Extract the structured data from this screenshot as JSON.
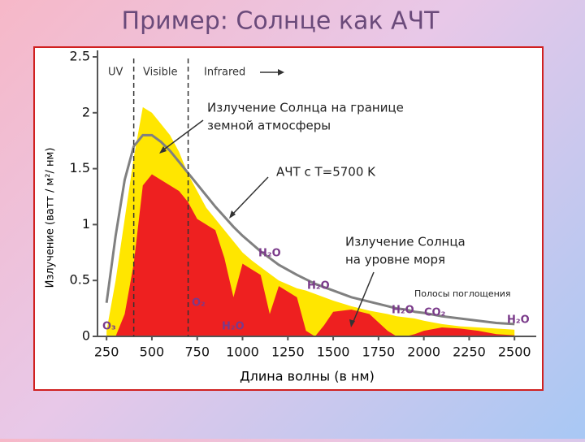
{
  "title": "Пример: Солнце как АЧТ",
  "chart_data": {
    "type": "area",
    "x_label": "Длина волны (в нм)",
    "y_label": "Излучение (ватт / м²/ нм)",
    "x": [
      250,
      300,
      350,
      400,
      450,
      500,
      550,
      600,
      650,
      700,
      750,
      800,
      850,
      900,
      950,
      1000,
      1050,
      1100,
      1150,
      1200,
      1300,
      1350,
      1400,
      1450,
      1500,
      1600,
      1700,
      1800,
      1850,
      1900,
      1950,
      2000,
      2100,
      2200,
      2300,
      2400,
      2500
    ],
    "series": [
      {
        "name": "Излучение Солнца на границе земной атмосферы",
        "type": "area",
        "color": "#ffe600",
        "values": [
          0.05,
          0.5,
          1.05,
          1.6,
          2.05,
          2.0,
          1.9,
          1.8,
          1.65,
          1.45,
          1.3,
          1.15,
          1.05,
          0.95,
          0.85,
          0.75,
          0.68,
          0.62,
          0.56,
          0.5,
          0.43,
          0.41,
          0.38,
          0.35,
          0.32,
          0.27,
          0.23,
          0.2,
          0.18,
          0.17,
          0.16,
          0.14,
          0.11,
          0.09,
          0.08,
          0.07,
          0.06
        ]
      },
      {
        "name": "Излучение Солнца на уровне моря",
        "type": "area",
        "color": "#ee2020",
        "values": [
          0,
          0,
          0.2,
          0.65,
          1.35,
          1.45,
          1.4,
          1.35,
          1.3,
          1.2,
          1.05,
          1.0,
          0.95,
          0.7,
          0.35,
          0.65,
          0.6,
          0.55,
          0.2,
          0.45,
          0.35,
          0.05,
          0,
          0.1,
          0.22,
          0.24,
          0.2,
          0.05,
          0,
          0,
          0.02,
          0.05,
          0.08,
          0.07,
          0.05,
          0.02,
          0.01
        ]
      },
      {
        "name": "АЧТ с T=5700 K",
        "type": "line",
        "color": "#808080",
        "values": [
          0.3,
          0.9,
          1.4,
          1.7,
          1.8,
          1.8,
          1.74,
          1.66,
          1.56,
          1.46,
          1.36,
          1.26,
          1.16,
          1.07,
          0.98,
          0.9,
          0.83,
          0.76,
          0.7,
          0.64,
          0.55,
          0.51,
          0.47,
          0.44,
          0.41,
          0.35,
          0.31,
          0.27,
          0.25,
          0.24,
          0.22,
          0.21,
          0.18,
          0.16,
          0.14,
          0.12,
          0.11
        ]
      }
    ],
    "xlim": [
      200,
      2620
    ],
    "ylim": [
      0,
      2.5
    ],
    "xticks": [
      250,
      500,
      750,
      1000,
      1250,
      1500,
      1750,
      2000,
      2250,
      2500
    ],
    "yticks": [
      0,
      0.5,
      1,
      1.5,
      2,
      2.5
    ],
    "dividers": [
      400,
      700
    ],
    "regions": [
      "UV",
      "Visible",
      "Infrared"
    ],
    "annotations": [
      "Излучение Солнца на границе",
      "земной атмосферы",
      "АЧТ с T=5700 K",
      "Излучение Солнца",
      "на уровне моря",
      "Полосы поглощения"
    ],
    "band_labels": [
      "H₂O",
      "H₂O",
      "H₂O",
      "H₂O",
      "CO₂",
      "O₂",
      "H₂O",
      "O₃"
    ]
  }
}
